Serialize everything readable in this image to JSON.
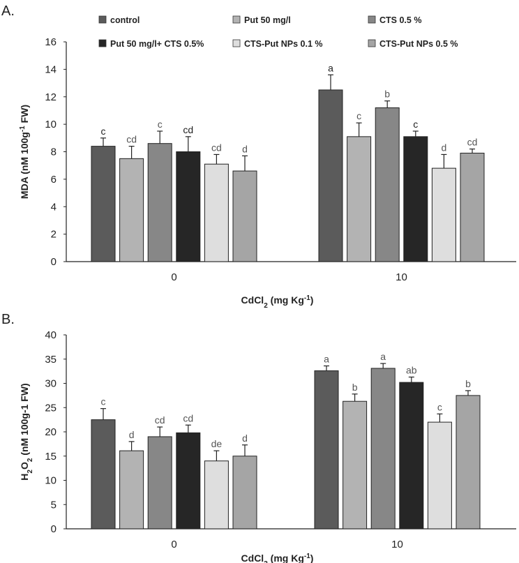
{
  "legend": [
    {
      "name": "control",
      "color": "#5b5b5b"
    },
    {
      "name": "Put 50 mg/l",
      "color": "#b3b3b3"
    },
    {
      "name": "CTS 0.5 %",
      "color": "#878787"
    },
    {
      "name": "Put 50 mg/l+ CTS 0.5%",
      "color": "#262626"
    },
    {
      "name": "CTS-Put NPs 0.1 %",
      "color": "#dedede"
    },
    {
      "name": "CTS-Put NPs 0.5 %",
      "color": "#a5a5a5"
    }
  ],
  "chart_data": [
    {
      "type": "bar",
      "panel_label": "A.",
      "categories": [
        "0",
        "10"
      ],
      "xlabel": {
        "main": "CdCl",
        "sub": "2",
        "rest": " (mg Kg",
        "sup": "-1",
        "end": ")"
      },
      "ylabel": {
        "main": "MDA (nM 100g",
        "sup": "-1",
        "rest": " FW)"
      },
      "ylim": [
        0,
        16
      ],
      "yticks": [
        0,
        2,
        4,
        6,
        8,
        10,
        12,
        14,
        16
      ],
      "series": [
        {
          "name": "control",
          "values": [
            8.4,
            12.5
          ],
          "errors": [
            0.6,
            1.1
          ],
          "letters": [
            "c",
            "a"
          ]
        },
        {
          "name": "Put 50 mg/l",
          "values": [
            7.5,
            9.1
          ],
          "errors": [
            0.9,
            1.0
          ],
          "letters": [
            "cd",
            "c"
          ]
        },
        {
          "name": "CTS 0.5 %",
          "values": [
            8.6,
            11.2
          ],
          "errors": [
            0.9,
            0.5
          ],
          "letters": [
            "c",
            "b"
          ]
        },
        {
          "name": "Put 50 mg/l+ CTS 0.5%",
          "values": [
            8.0,
            9.1
          ],
          "errors": [
            1.1,
            0.4
          ],
          "letters": [
            "cd",
            "c"
          ]
        },
        {
          "name": "CTS-Put NPs 0.1 %",
          "values": [
            7.1,
            6.8
          ],
          "errors": [
            0.7,
            1.0
          ],
          "letters": [
            "cd",
            "d"
          ]
        },
        {
          "name": "CTS-Put NPs 0.5 %",
          "values": [
            6.6,
            7.9
          ],
          "errors": [
            1.1,
            0.3
          ],
          "letters": [
            "d",
            "cd"
          ]
        }
      ]
    },
    {
      "type": "bar",
      "panel_label": "B.",
      "categories": [
        "0",
        "10"
      ],
      "xlabel": {
        "main": "CdCl",
        "sub": "2",
        "rest": " (mg Kg",
        "sup": "-1",
        "end": ")"
      },
      "ylabel": {
        "main": "H",
        "sub": "2",
        "main2": "O",
        "sub2": "2",
        "rest": " (nM 100g-1 FW)"
      },
      "ylim": [
        0,
        40
      ],
      "yticks": [
        0,
        5,
        10,
        15,
        20,
        25,
        30,
        35,
        40
      ],
      "series": [
        {
          "name": "control",
          "values": [
            22.5,
            32.6
          ],
          "errors": [
            2.3,
            1.0
          ],
          "letters": [
            "c",
            "a"
          ]
        },
        {
          "name": "Put 50 mg/l",
          "values": [
            16.1,
            26.3
          ],
          "errors": [
            1.9,
            1.5
          ],
          "letters": [
            "d",
            "b"
          ]
        },
        {
          "name": "CTS 0.5 %",
          "values": [
            19.0,
            33.1
          ],
          "errors": [
            2.0,
            1.0
          ],
          "letters": [
            "cd",
            "a"
          ]
        },
        {
          "name": "Put 50 mg/l+ CTS 0.5%",
          "values": [
            19.8,
            30.2
          ],
          "errors": [
            1.6,
            1.1
          ],
          "letters": [
            "cd",
            "ab"
          ]
        },
        {
          "name": "CTS-Put NPs 0.1 %",
          "values": [
            14.0,
            22.0
          ],
          "errors": [
            2.1,
            1.7
          ],
          "letters": [
            "de",
            "c"
          ]
        },
        {
          "name": "CTS-Put NPs 0.5 %",
          "values": [
            15.0,
            27.5
          ],
          "errors": [
            2.3,
            1.0
          ],
          "letters": [
            "d",
            "b"
          ]
        }
      ]
    }
  ]
}
